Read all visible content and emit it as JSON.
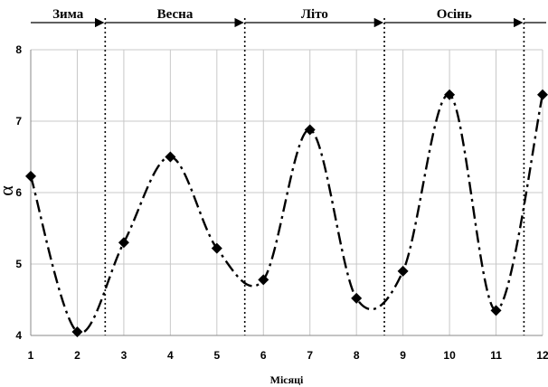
{
  "chart_data": {
    "type": "line",
    "title": "",
    "xlabel": "Місяці",
    "ylabel": "α",
    "x": [
      1,
      2,
      3,
      4,
      5,
      6,
      7,
      8,
      9,
      10,
      11,
      12
    ],
    "series": [
      {
        "values": [
          6.23,
          4.05,
          5.3,
          6.5,
          5.22,
          4.78,
          6.88,
          4.52,
          4.9,
          7.37,
          4.35,
          7.37
        ]
      }
    ],
    "xlim": [
      1,
      12
    ],
    "ylim": [
      4,
      8
    ],
    "xticks": [
      1,
      2,
      3,
      4,
      5,
      6,
      7,
      8,
      9,
      10,
      11,
      12
    ],
    "yticks": [
      4,
      5,
      6,
      7,
      8
    ],
    "grid": true,
    "line_style": "dash-dot",
    "marker": "diamond",
    "colors": {
      "line": "#000000",
      "grid": "#c8c8c8"
    },
    "season_boundaries": [
      2.6,
      5.6,
      8.6,
      11.6
    ],
    "seasons": [
      {
        "label": "Зима",
        "from": 1,
        "to": 2.6
      },
      {
        "label": "Весна",
        "from": 2.6,
        "to": 5.6
      },
      {
        "label": "Літо",
        "from": 5.6,
        "to": 8.6
      },
      {
        "label": "Осінь",
        "from": 8.6,
        "to": 11.6
      }
    ]
  }
}
